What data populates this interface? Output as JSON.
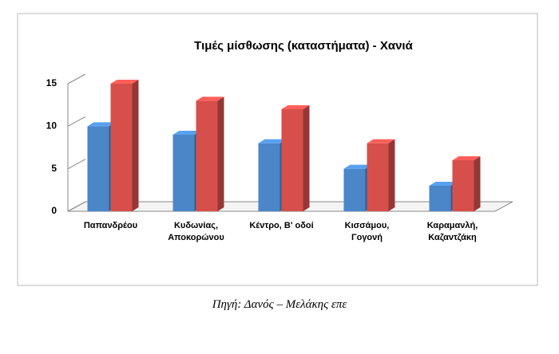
{
  "chart_data": {
    "type": "bar3d",
    "title": "Τιμές μίσθωσης (καταστήματα) - Χανιά",
    "categories": [
      "Παπανδρέου",
      "Κυδωνίας, Αποκορώνου",
      "Κέντρο, Β' οδοί",
      "Κισσάμου, Γογονή",
      "Καραμανλή, Καζαντζάκη"
    ],
    "series": [
      {
        "color": "#4a86c8",
        "values": [
          10,
          9,
          8,
          5,
          3
        ]
      },
      {
        "color": "#d64f4b",
        "values": [
          15,
          13,
          12,
          8,
          6
        ]
      }
    ],
    "ylim": [
      0,
      15
    ],
    "yticks": [
      0,
      5,
      10,
      15
    ]
  },
  "caption": "Πηγή: Δανός – Μελάκης επε"
}
